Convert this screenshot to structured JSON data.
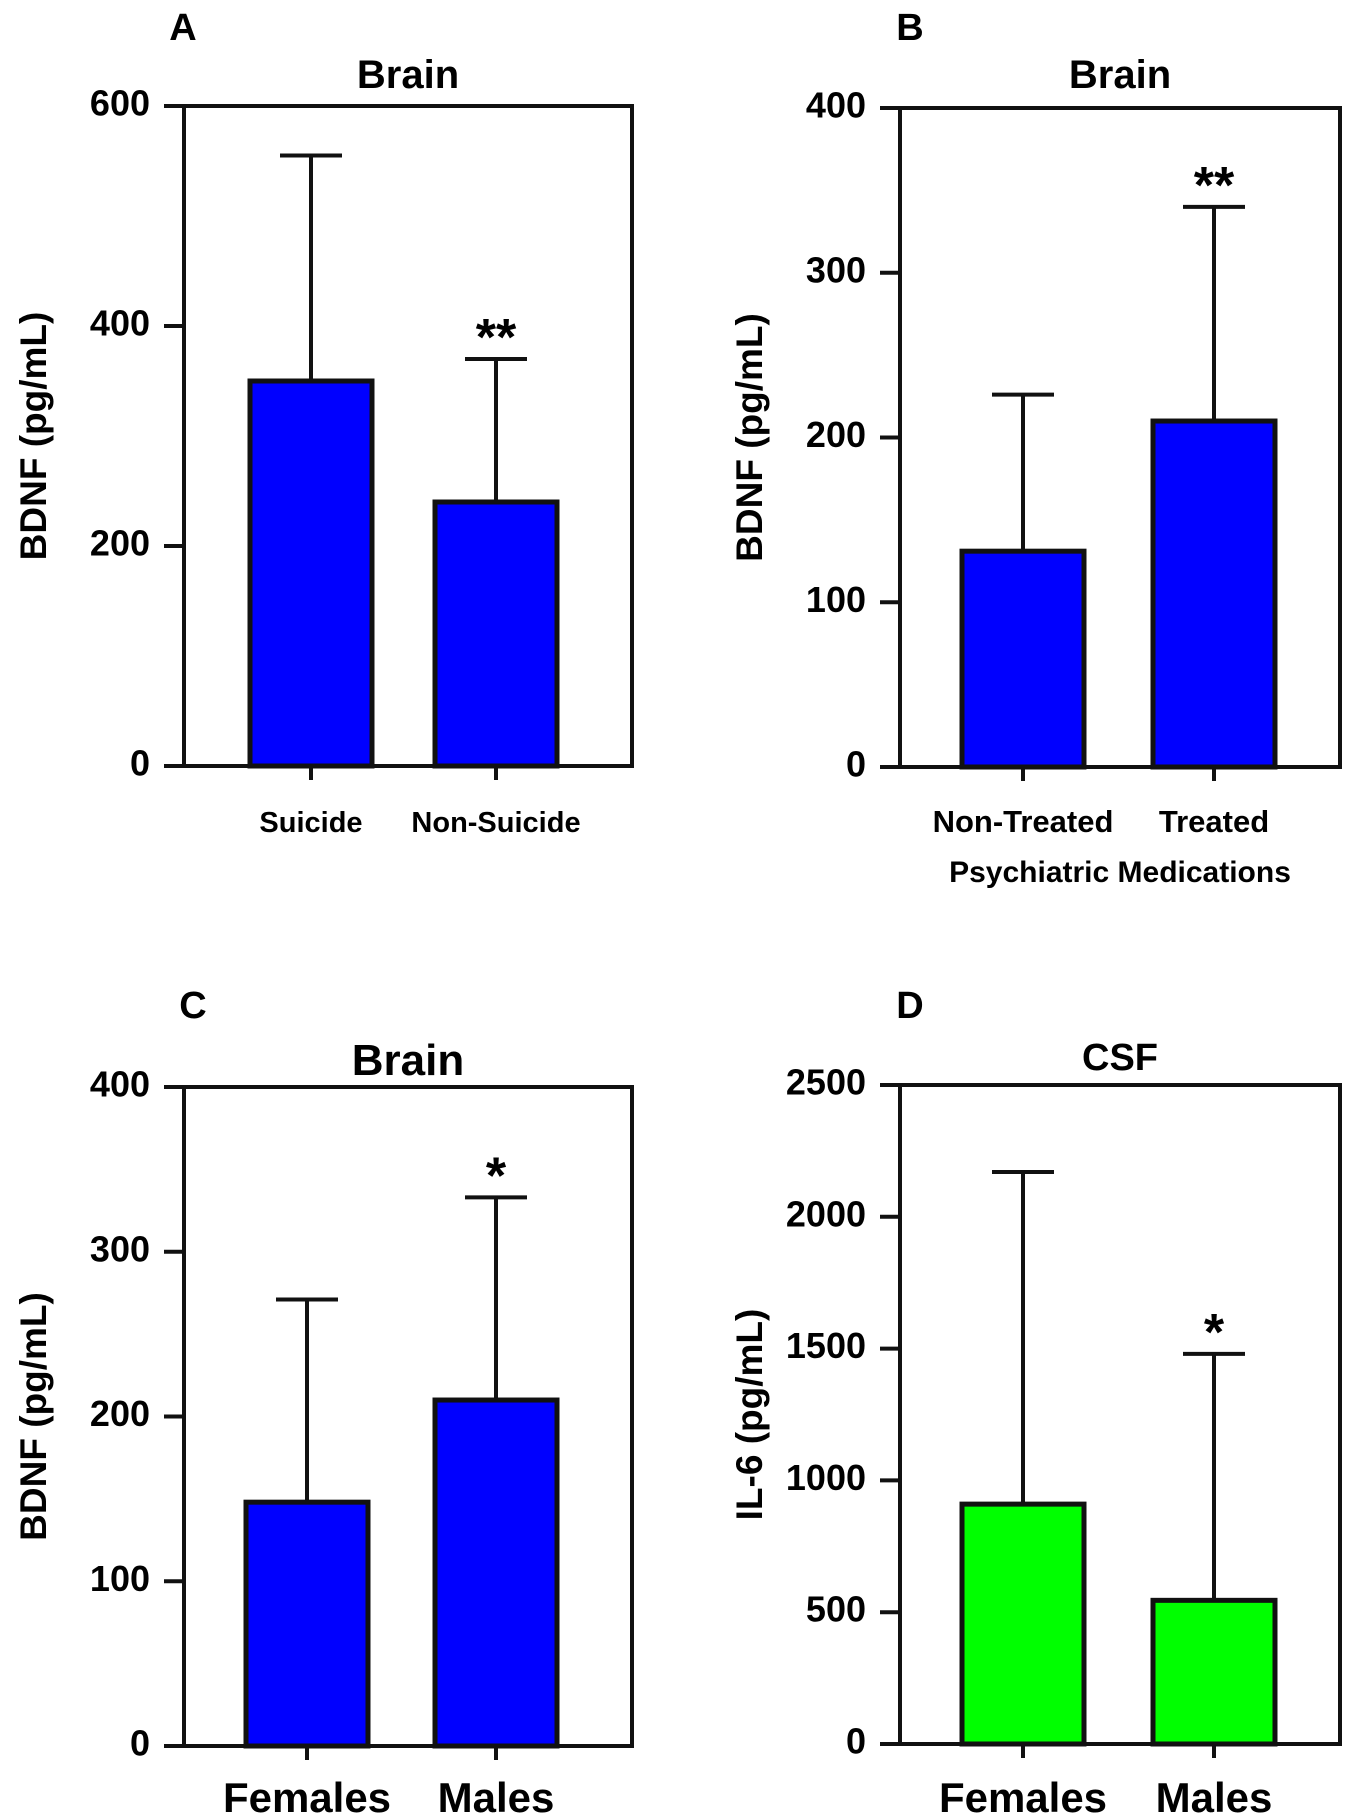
{
  "chart_data": [
    {
      "panel_label": "A",
      "type": "bar",
      "title": "Brain",
      "ylabel": "BDNF (pg/mL)",
      "xlabel": "",
      "categories": [
        "Suicide",
        "Non-Suicide"
      ],
      "values": [
        350,
        240
      ],
      "error_upper": [
        555,
        370
      ],
      "significance": [
        "",
        "**"
      ],
      "ylim": [
        0,
        600
      ],
      "yticks": [
        "0",
        "200",
        "400",
        "600"
      ],
      "bar_color": "#0000ff",
      "grid": false
    },
    {
      "panel_label": "B",
      "type": "bar",
      "title": "Brain",
      "ylabel": "BDNF (pg/mL)",
      "xlabel": "Psychiatric Medications",
      "categories": [
        "Non-Treated",
        "Treated"
      ],
      "values": [
        131,
        210
      ],
      "error_upper": [
        226,
        340
      ],
      "significance": [
        "",
        "**"
      ],
      "ylim": [
        0,
        400
      ],
      "yticks": [
        "0",
        "100",
        "200",
        "300",
        "400"
      ],
      "bar_color": "#0000ff",
      "grid": false
    },
    {
      "panel_label": "C",
      "type": "bar",
      "title": "Brain",
      "ylabel": "BDNF (pg/mL)",
      "xlabel": "",
      "categories": [
        "Females",
        "Males"
      ],
      "values": [
        148,
        210
      ],
      "error_upper": [
        271,
        333
      ],
      "significance": [
        "",
        "*"
      ],
      "ylim": [
        0,
        400
      ],
      "yticks": [
        "0",
        "100",
        "200",
        "300",
        "400"
      ],
      "bar_color": "#0000ff",
      "grid": false
    },
    {
      "panel_label": "D",
      "type": "bar",
      "title": "CSF",
      "ylabel": "IL-6 (pg/mL)",
      "xlabel": "",
      "categories": [
        "Females",
        "Males"
      ],
      "values": [
        910,
        545
      ],
      "error_upper": [
        2170,
        1480
      ],
      "significance": [
        "",
        "*"
      ],
      "ylim": [
        0,
        2500
      ],
      "yticks": [
        "0",
        "500",
        "1000",
        "1500",
        "2000",
        "2500"
      ],
      "bar_color": "#00ff00",
      "grid": false
    }
  ]
}
